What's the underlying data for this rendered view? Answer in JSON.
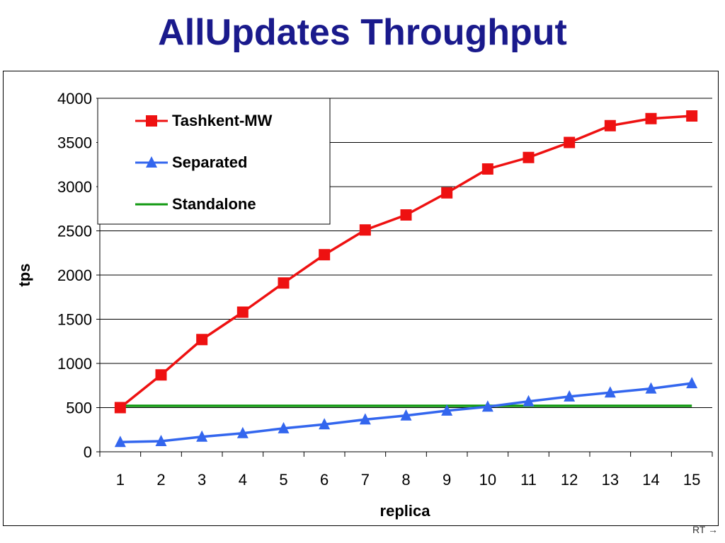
{
  "slide": {
    "title": "AllUpdates Throughput",
    "footer": "RT →"
  },
  "chart_data": {
    "type": "line",
    "title": "",
    "xlabel": "replica",
    "ylabel": "tps",
    "x": [
      1,
      2,
      3,
      4,
      5,
      6,
      7,
      8,
      9,
      10,
      11,
      12,
      13,
      14,
      15
    ],
    "ylim": [
      0,
      4000
    ],
    "yticks": [
      0,
      500,
      1000,
      1500,
      2000,
      2500,
      3000,
      3500,
      4000
    ],
    "grid": true,
    "legend_position": "top-left",
    "series": [
      {
        "name": "Tashkent-MW",
        "color": "#ee1111",
        "marker": "square",
        "values": [
          500,
          870,
          1270,
          1580,
          1910,
          2230,
          2510,
          2680,
          2930,
          3200,
          3330,
          3500,
          3690,
          3770,
          3800
        ]
      },
      {
        "name": "Separated",
        "color": "#3366ee",
        "marker": "triangle",
        "values": [
          110,
          120,
          170,
          210,
          265,
          310,
          365,
          410,
          465,
          510,
          570,
          625,
          670,
          715,
          775
        ]
      },
      {
        "name": "Standalone",
        "color": "#119911",
        "marker": "none",
        "values": [
          520,
          520,
          520,
          520,
          520,
          520,
          520,
          520,
          520,
          520,
          520,
          520,
          520,
          520,
          520
        ]
      }
    ]
  }
}
